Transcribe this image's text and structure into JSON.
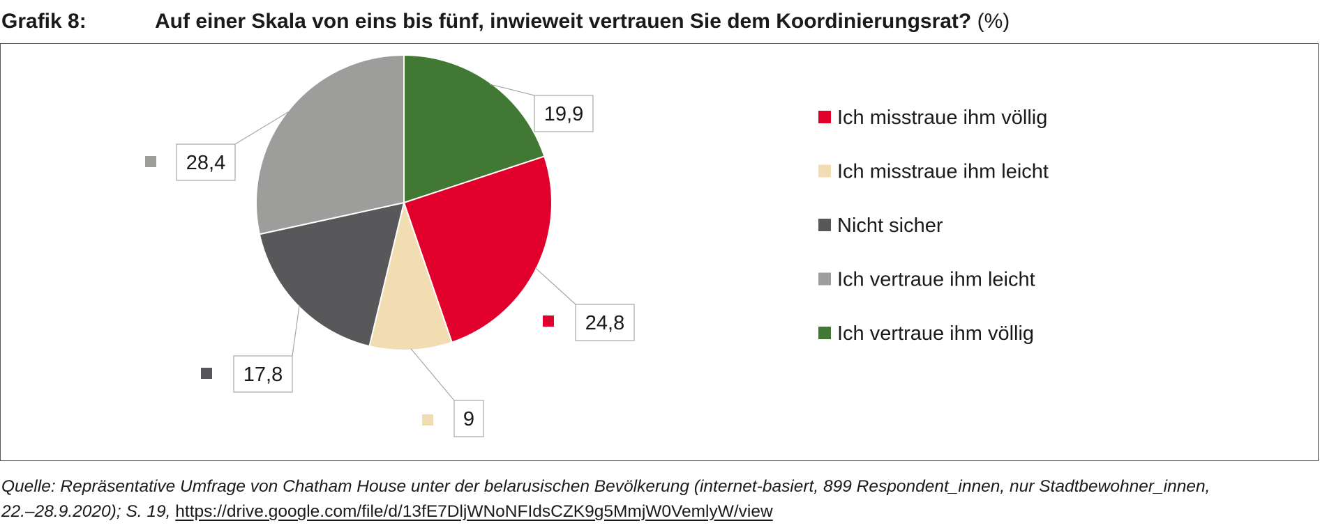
{
  "header": {
    "label": "Grafik 8:",
    "title": "Auf einer Skala von eins bis fünf, inwieweit vertrauen Sie dem Koordinierungsrat?",
    "unit": "(%)"
  },
  "chart_data": {
    "type": "pie",
    "start_angle_deg": 0,
    "direction": "clockwise",
    "legend_position": "right",
    "slices": [
      {
        "label": "Ich vertraue ihm völlig",
        "value": 19.9,
        "value_label": "19,9",
        "color": "#417934"
      },
      {
        "label": "Ich misstraue ihm völlig",
        "value": 24.8,
        "value_label": "24,8",
        "color": "#e0002b"
      },
      {
        "label": "Ich misstraue ihm leicht",
        "value": 9,
        "value_label": "9",
        "color": "#f2dcb1"
      },
      {
        "label": "Nicht sicher",
        "value": 17.8,
        "value_label": "17,8",
        "color": "#58585a"
      },
      {
        "label": "Ich vertraue ihm leicht",
        "value": 28.4,
        "value_label": "28,4",
        "color": "#9d9d9c"
      }
    ],
    "legend": [
      {
        "label": "Ich misstraue ihm völlig",
        "color": "#e0002b"
      },
      {
        "label": "Ich misstraue ihm leicht",
        "color": "#f2dcb1"
      },
      {
        "label": "Nicht sicher",
        "color": "#58585a"
      },
      {
        "label": "Ich vertraue ihm leicht",
        "color": "#9d9d9c"
      },
      {
        "label": "Ich vertraue ihm völlig",
        "color": "#417934"
      }
    ]
  },
  "footer": {
    "source_line1": "Quelle: Repräsentative Umfrage von Chatham House unter der belarusischen Bevölkerung  (internet-basiert, 899 Respondent_innen, nur Stadtbewohner_innen,",
    "source_line2": "22.–28.9.2020); S. 19,",
    "link": "https://drive.google.com/file/d/13fE7DljWNoNFIdsCZK9g5MmjW0VemlyW/view"
  }
}
